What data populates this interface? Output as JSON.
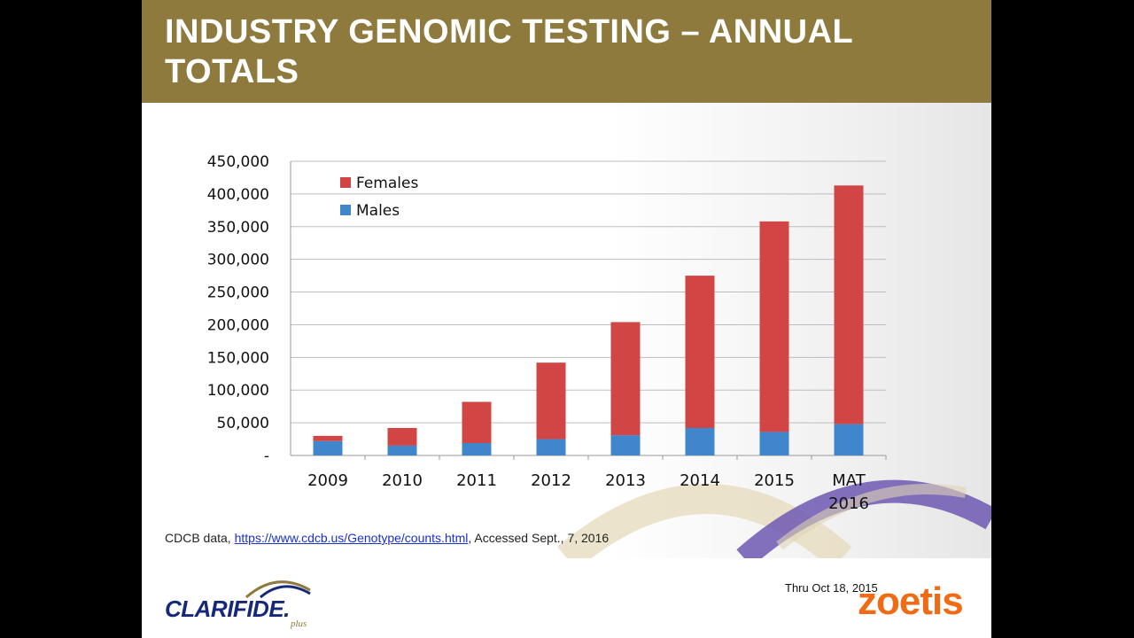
{
  "slide": {
    "title": "INDUSTRY GENOMIC TESTING – ANNUAL TOTALS",
    "source_prefix": "CDCB data, ",
    "source_link": "https://www.cdcb.us/Genotype/counts.html",
    "source_suffix": ", Accessed Sept., 7, 2016",
    "footer_note": "Thru Oct 18, 2015",
    "brand_left": "CLARIFIDE.",
    "brand_left_sub": "plus",
    "brand_right": "zoetis"
  },
  "colors": {
    "title_band": "#8e7a3c",
    "females": "#d24545",
    "males": "#3f86cc",
    "brand_blue": "#15287a",
    "brand_orange": "#f06b14"
  },
  "chart_data": {
    "type": "bar",
    "stacked": true,
    "categories": [
      "2009",
      "2010",
      "2011",
      "2012",
      "2013",
      "2014",
      "2015",
      "MAT 2016"
    ],
    "series": [
      {
        "name": "Males",
        "values": [
          22000,
          15000,
          19000,
          25000,
          31000,
          42000,
          36000,
          48000
        ]
      },
      {
        "name": "Females",
        "values": [
          8000,
          27000,
          63000,
          117000,
          173000,
          233000,
          322000,
          365000
        ]
      }
    ],
    "ylim": [
      0,
      450000
    ],
    "yticks": [
      0,
      50000,
      100000,
      150000,
      200000,
      250000,
      300000,
      350000,
      400000,
      450000
    ],
    "ytick_labels": [
      "-",
      "50,000",
      "100,000",
      "150,000",
      "200,000",
      "250,000",
      "300,000",
      "350,000",
      "400,000",
      "450,000"
    ],
    "legend": [
      "Females",
      "Males"
    ],
    "legend_position": "top-left",
    "grid": true,
    "title": "",
    "xlabel": "",
    "ylabel": ""
  }
}
